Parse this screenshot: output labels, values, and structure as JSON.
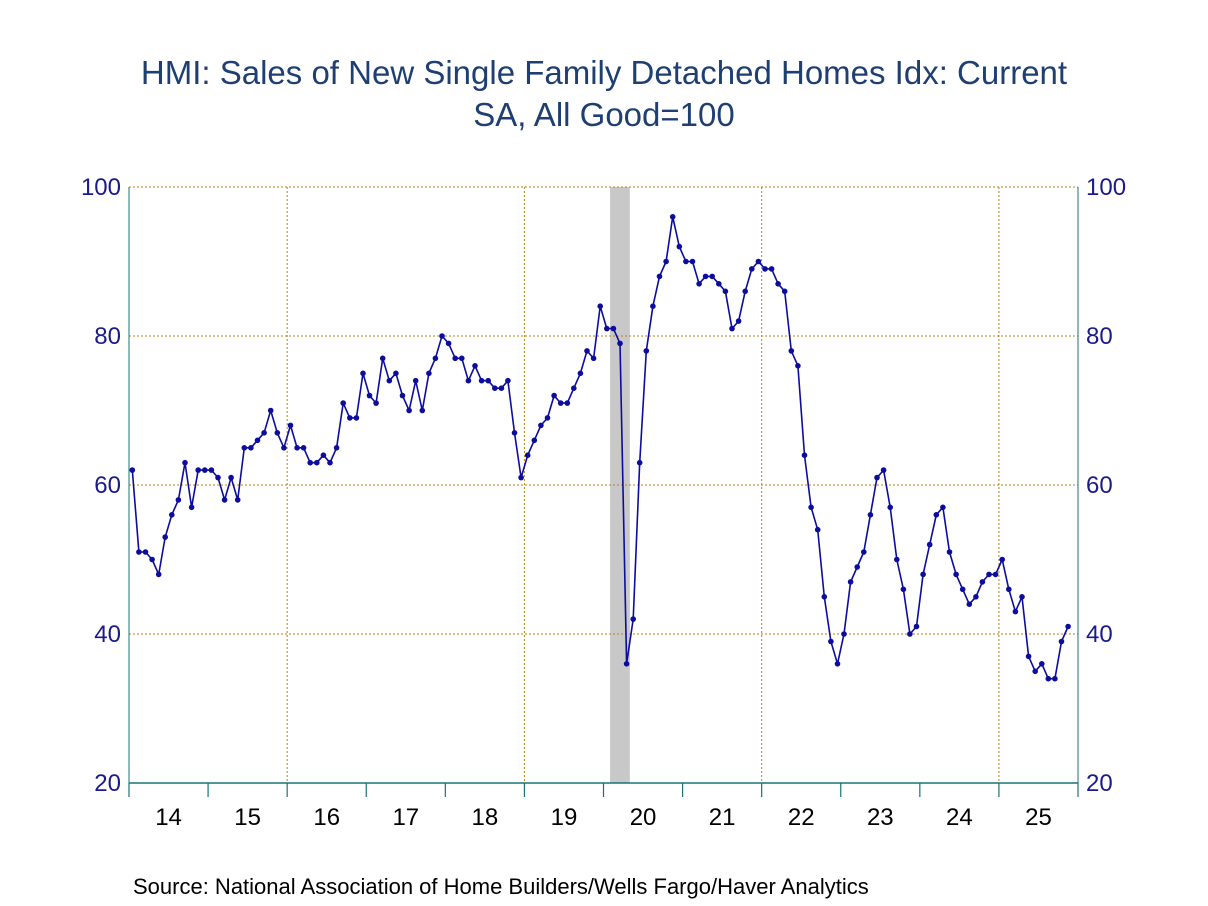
{
  "title_lines": [
    "HMI: Sales of New Single Family Detached Homes Idx: Current",
    "SA, All Good=100"
  ],
  "source": "Source:  National Association of Home Builders/Wells Fargo/Haver Analytics",
  "colors": {
    "title": "#1f3f73",
    "line": "#0c0c9e",
    "grid": "#b8860b",
    "axis": "#1a7373",
    "tick_label": "#1a1a8c",
    "recession": "#c8c8c8"
  },
  "chart_data": {
    "type": "line",
    "title": "HMI: Sales of New Single Family Detached Homes Idx: Current SA, All Good=100",
    "xlabel": "",
    "ylabel": "",
    "ylim": [
      20,
      100
    ],
    "y_ticks": [
      20,
      40,
      60,
      80,
      100
    ],
    "x_tick_labels": [
      "14",
      "15",
      "16",
      "17",
      "18",
      "19",
      "20",
      "21",
      "22",
      "23",
      "24",
      "25"
    ],
    "x_range": [
      "2014-01",
      "2025-12"
    ],
    "grid": true,
    "recession_shading": {
      "start": "2020-02",
      "end": "2020-04"
    },
    "series": [
      {
        "start": "2014-01",
        "frequency": "monthly",
        "values": [
          62,
          51,
          51,
          50,
          48,
          53,
          56,
          58,
          63,
          57,
          62,
          62,
          62,
          61,
          58,
          61,
          58,
          65,
          65,
          66,
          67,
          70,
          67,
          65,
          68,
          65,
          65,
          63,
          63,
          64,
          63,
          65,
          71,
          69,
          69,
          75,
          72,
          71,
          77,
          74,
          75,
          72,
          70,
          74,
          70,
          75,
          77,
          80,
          79,
          77,
          77,
          74,
          76,
          74,
          74,
          73,
          73,
          74,
          67,
          61,
          64,
          66,
          68,
          69,
          72,
          71,
          71,
          73,
          75,
          78,
          77,
          84,
          81,
          81,
          79,
          36,
          42,
          63,
          78,
          84,
          88,
          90,
          96,
          92,
          90,
          90,
          87,
          88,
          88,
          87,
          86,
          81,
          82,
          86,
          89,
          90,
          89,
          89,
          87,
          86,
          78,
          76,
          64,
          57,
          54,
          45,
          39,
          36,
          40,
          47,
          49,
          51,
          56,
          61,
          62,
          57,
          50,
          46,
          40,
          41,
          48,
          52,
          56,
          57,
          51,
          48,
          46,
          44,
          45,
          47,
          48,
          48,
          50,
          46,
          43,
          45,
          37,
          35,
          36,
          34,
          34,
          39,
          41
        ]
      }
    ]
  }
}
